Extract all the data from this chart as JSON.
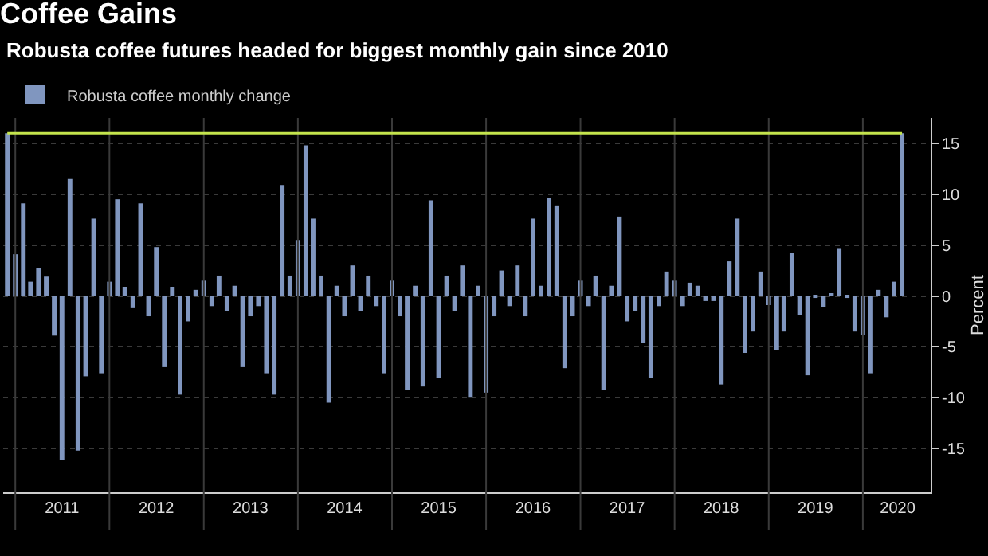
{
  "chart_data": {
    "type": "bar",
    "title": "Coffee Gains",
    "subtitle": "Robusta coffee futures headed for biggest monthly gain since 2010",
    "ylabel": "Percent",
    "x": [
      "2010-12",
      "2011-01",
      "2011-02",
      "2011-03",
      "2011-04",
      "2011-05",
      "2011-06",
      "2011-07",
      "2011-08",
      "2011-09",
      "2011-10",
      "2011-11",
      "2011-12",
      "2012-01",
      "2012-02",
      "2012-03",
      "2012-04",
      "2012-05",
      "2012-06",
      "2012-07",
      "2012-08",
      "2012-09",
      "2012-10",
      "2012-11",
      "2012-12",
      "2013-01",
      "2013-02",
      "2013-03",
      "2013-04",
      "2013-05",
      "2013-06",
      "2013-07",
      "2013-08",
      "2013-09",
      "2013-10",
      "2013-11",
      "2013-12",
      "2014-01",
      "2014-02",
      "2014-03",
      "2014-04",
      "2014-05",
      "2014-06",
      "2014-07",
      "2014-08",
      "2014-09",
      "2014-10",
      "2014-11",
      "2014-12",
      "2015-01",
      "2015-02",
      "2015-03",
      "2015-04",
      "2015-05",
      "2015-06",
      "2015-07",
      "2015-08",
      "2015-09",
      "2015-10",
      "2015-11",
      "2015-12",
      "2016-01",
      "2016-02",
      "2016-03",
      "2016-04",
      "2016-05",
      "2016-06",
      "2016-07",
      "2016-08",
      "2016-09",
      "2016-10",
      "2016-11",
      "2016-12",
      "2017-01",
      "2017-02",
      "2017-03",
      "2017-04",
      "2017-05",
      "2017-06",
      "2017-07",
      "2017-08",
      "2017-09",
      "2017-10",
      "2017-11",
      "2017-12",
      "2018-01",
      "2018-02",
      "2018-03",
      "2018-04",
      "2018-05",
      "2018-06",
      "2018-07",
      "2018-08",
      "2018-09",
      "2018-10",
      "2018-11",
      "2018-12",
      "2019-01",
      "2019-02",
      "2019-03",
      "2019-04",
      "2019-05",
      "2019-06",
      "2019-07",
      "2019-08",
      "2019-09",
      "2019-10",
      "2019-11",
      "2019-12",
      "2020-01",
      "2020-02",
      "2020-03",
      "2020-04",
      "2020-05",
      "2020-06"
    ],
    "series": [
      {
        "name": "Robusta coffee monthly change",
        "color": "#8096bf",
        "values": [
          16.0,
          4.1,
          9.1,
          1.4,
          2.7,
          1.9,
          -3.9,
          -16.1,
          11.5,
          -15.2,
          -7.9,
          7.6,
          -7.6,
          1.4,
          9.5,
          0.9,
          -1.2,
          9.1,
          -2.0,
          4.8,
          -7.0,
          0.9,
          -9.7,
          -2.5,
          0.6,
          1.5,
          -1.0,
          2.0,
          -1.5,
          1.0,
          -7.0,
          -2.0,
          -1.0,
          -7.6,
          -9.7,
          10.9,
          2.0,
          5.5,
          14.8,
          7.6,
          2.0,
          -10.5,
          1.0,
          -2.0,
          3.0,
          -1.5,
          2.0,
          -1.0,
          -7.6,
          1.5,
          -2.0,
          -9.2,
          1.0,
          -8.9,
          9.4,
          -8.1,
          2.0,
          -1.5,
          3.0,
          -10.0,
          1.0,
          -9.5,
          -2.0,
          2.5,
          -1.0,
          3.0,
          -2.0,
          7.6,
          1.0,
          9.6,
          8.9,
          -7.1,
          -2.0,
          1.5,
          -1.0,
          2.0,
          -9.2,
          1.0,
          7.8,
          -2.5,
          -1.5,
          -4.6,
          -8.1,
          -1.0,
          2.4,
          1.5,
          -1.0,
          1.3,
          1.0,
          -0.5,
          -0.5,
          -8.7,
          3.4,
          7.6,
          -5.6,
          -3.5,
          2.4,
          -0.9,
          -5.3,
          -3.5,
          4.2,
          -1.9,
          -7.8,
          -0.2,
          -1.1,
          0.2,
          4.7,
          -0.2,
          -3.5,
          -3.8,
          -7.6,
          0.6,
          -2.1,
          1.4,
          16.0
        ]
      }
    ],
    "xlim": [
      "2010-11-15",
      "2020-09-20"
    ],
    "xticks": [
      {
        "value": "2011-01-01",
        "label": null
      },
      {
        "value": "2011-07-01",
        "label": "2011"
      },
      {
        "value": "2012-01-01",
        "label": null
      },
      {
        "value": "2012-07-01",
        "label": "2012"
      },
      {
        "value": "2013-01-01",
        "label": null
      },
      {
        "value": "2013-07-01",
        "label": "2013"
      },
      {
        "value": "2014-01-01",
        "label": null
      },
      {
        "value": "2014-07-01",
        "label": "2014"
      },
      {
        "value": "2015-01-01",
        "label": null
      },
      {
        "value": "2015-07-01",
        "label": "2015"
      },
      {
        "value": "2016-01-01",
        "label": null
      },
      {
        "value": "2016-07-01",
        "label": "2016"
      },
      {
        "value": "2017-01-01",
        "label": null
      },
      {
        "value": "2017-07-01",
        "label": "2017"
      },
      {
        "value": "2018-01-01",
        "label": null
      },
      {
        "value": "2018-07-01",
        "label": "2018"
      },
      {
        "value": "2019-01-01",
        "label": null
      },
      {
        "value": "2019-07-01",
        "label": "2019"
      },
      {
        "value": "2020-01-01",
        "label": null
      },
      {
        "value": "2020-05-15",
        "label": "2020"
      }
    ],
    "ylim": [
      -19.3,
      17.5
    ],
    "yticks": [
      -15,
      -10,
      -5,
      0,
      5,
      10,
      15
    ],
    "ref_lines": [
      {
        "axis": "y",
        "value": 16,
        "color": "#c4e44d"
      }
    ],
    "grid": true,
    "legend": "top left"
  }
}
